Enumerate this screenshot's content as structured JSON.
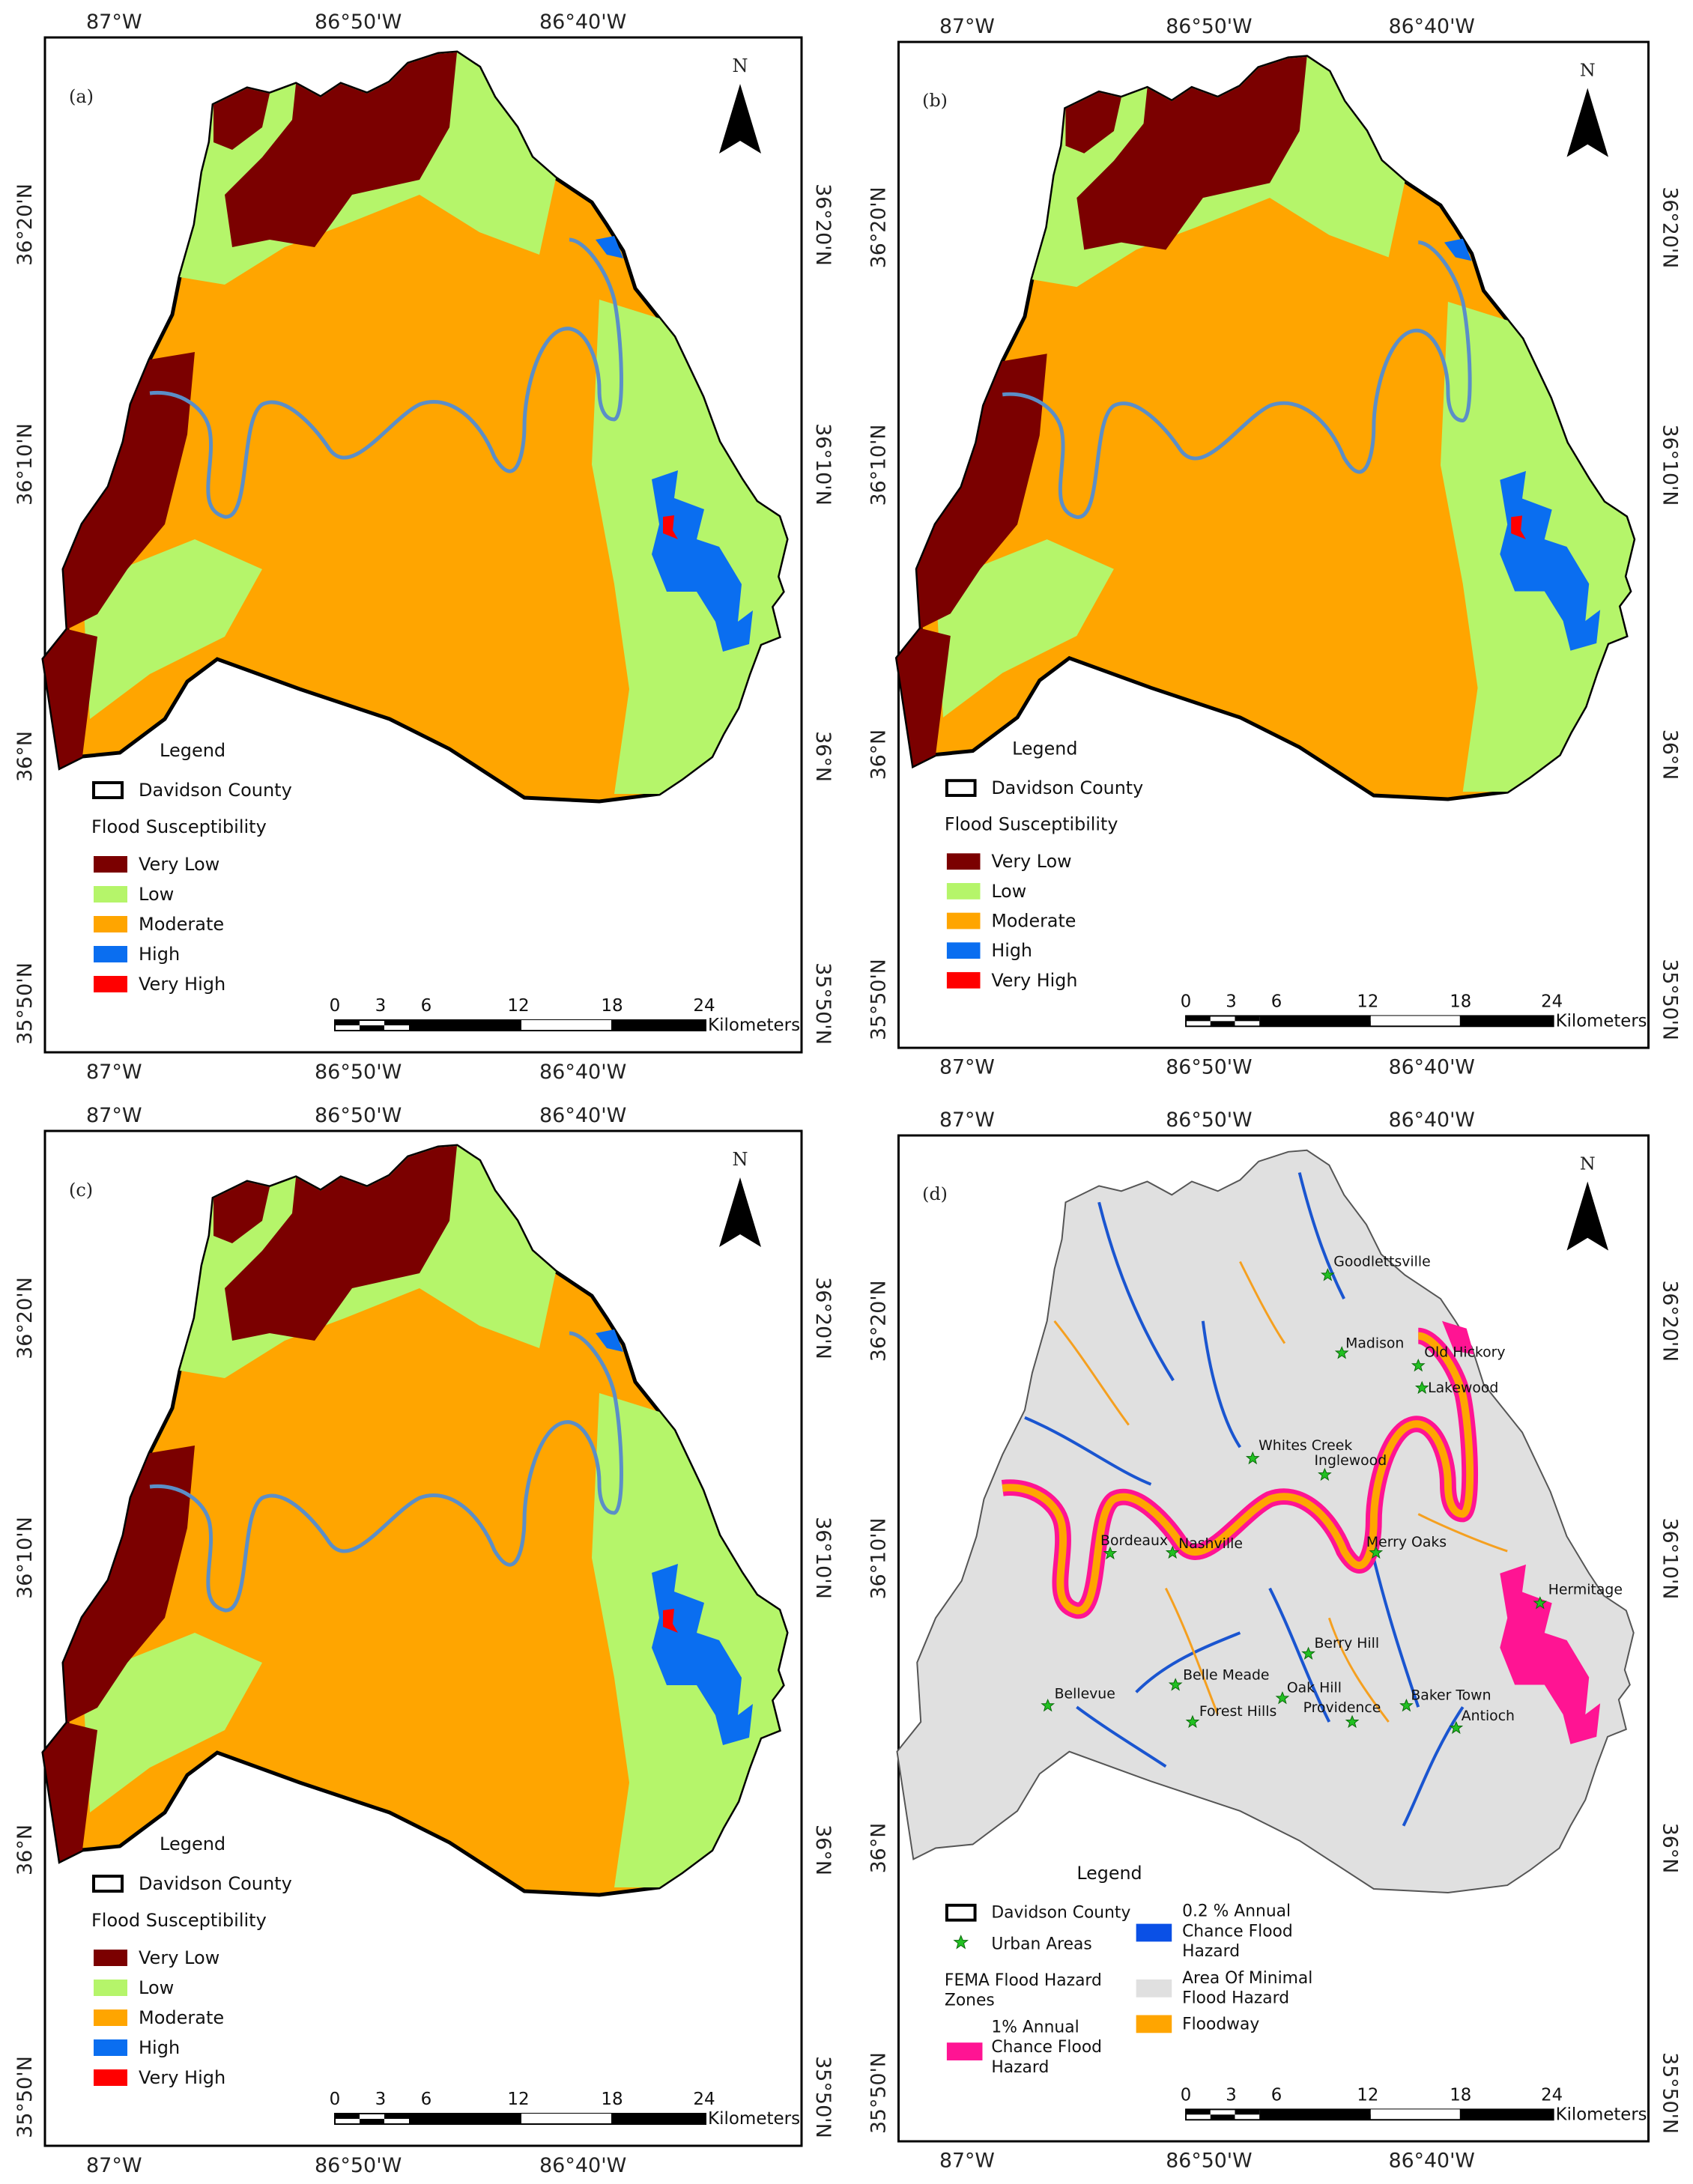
{
  "coords": {
    "top_lon": [
      "87°W",
      "86°50'W",
      "86°40'W"
    ],
    "bottom_lon": [
      "87°W",
      "86°50'W",
      "86°40'W"
    ],
    "left_lat": [
      "36°20'N",
      "36°10'N",
      "36°N",
      "35°50'N"
    ],
    "right_lat": [
      "36°20'N",
      "36°10'N",
      "36°N",
      "35°50'N"
    ]
  },
  "north_label": "N",
  "scale": {
    "ticks": [
      "0",
      "3",
      "6",
      "12",
      "18",
      "24"
    ],
    "unit": "Kilometers"
  },
  "panels": [
    {
      "label": "(a)"
    },
    {
      "label": "(b)"
    },
    {
      "label": "(c)"
    },
    {
      "label": "(d)"
    }
  ],
  "legend_susceptibility": {
    "title": "Legend",
    "county": "Davidson County",
    "group_title": "Flood Susceptibility",
    "classes": [
      {
        "label": "Very Low",
        "color": "#7b0000"
      },
      {
        "label": "Low",
        "color": "#b5f56a"
      },
      {
        "label": "Moderate",
        "color": "#ffa500"
      },
      {
        "label": "High",
        "color": "#0a6ef0"
      },
      {
        "label": "Very High",
        "color": "#ff0000"
      }
    ]
  },
  "legend_fema": {
    "title": "Legend",
    "county": "Davidson County",
    "urban": "Urban Areas",
    "group_title_1": "FEMA Flood Hazard",
    "group_title_2": "Zones",
    "one_pct_1": "1% Annual",
    "one_pct_2": "Chance Flood",
    "one_pct_3": "Hazard",
    "one_pct_color": "#ff1493",
    "pt2_1": "0.2 % Annual",
    "pt2_2": "Chance Flood",
    "pt2_3": "Hazard",
    "pt2_color": "#0a50e6",
    "minimal_1": "Area Of Minimal",
    "minimal_2": "Flood Hazard",
    "minimal_color": "#e0e0e0",
    "floodway": "Floodway",
    "floodway_color": "#ffa500"
  },
  "cities": [
    "Goodlettsville",
    "Madison",
    "Old Hickory",
    "Lakewood",
    "Whites Creek",
    "Inglewood",
    "Bordeaux",
    "Nashville",
    "Merry Oaks",
    "Hermitage",
    "Berry Hill",
    "Belle Meade",
    "Oak Hill",
    "Baker Town",
    "Bellevue",
    "Forest Hills",
    "Providence",
    "Antioch"
  ]
}
